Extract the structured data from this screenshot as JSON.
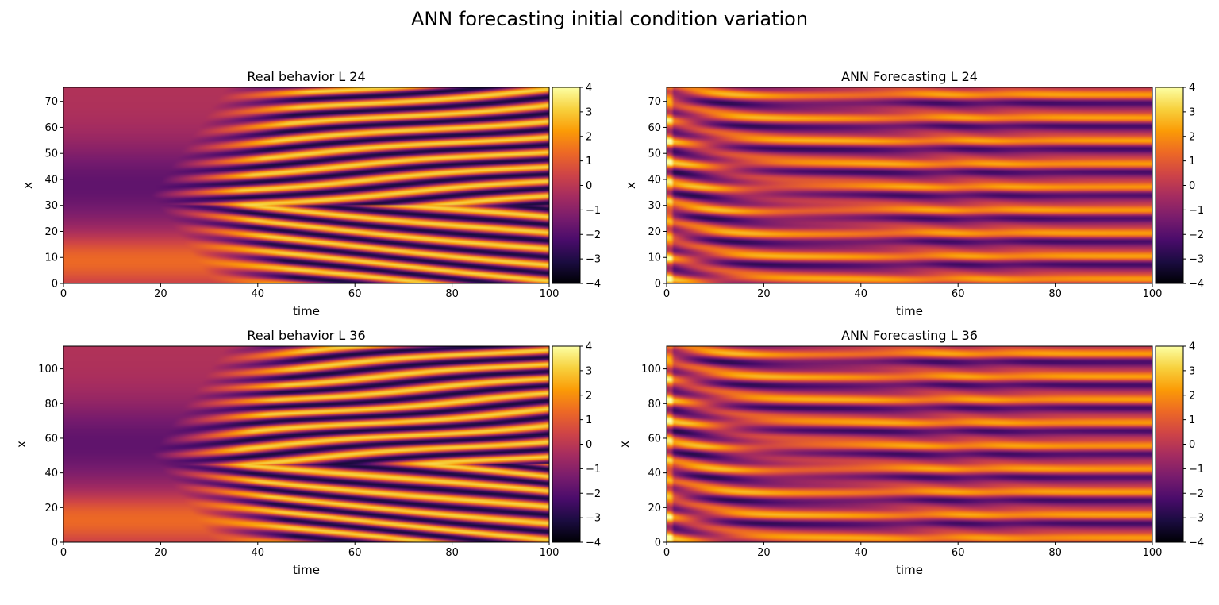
{
  "figure": {
    "suptitle": "ANN forecasting initial condition variation"
  },
  "colormap": {
    "name": "inferno",
    "stops": [
      "#000004",
      "#1b0c41",
      "#4a0c6b",
      "#781c6d",
      "#a52c60",
      "#cf4446",
      "#ed6925",
      "#fb9b06",
      "#f7d13d",
      "#fcffa4"
    ]
  },
  "chart_data": [
    {
      "type": "heatmap",
      "title": "Real behavior L 24",
      "xlabel": "time",
      "ylabel": "x",
      "xlim": [
        0,
        100
      ],
      "ylim": [
        0,
        75.4
      ],
      "xticks": [
        0,
        20,
        40,
        60,
        80,
        100
      ],
      "yticks": [
        0,
        10,
        20,
        30,
        40,
        50,
        60,
        70
      ],
      "colorbar": {
        "vmin": -4,
        "vmax": 4,
        "ticks": [
          4,
          3,
          2,
          1,
          0,
          -1,
          -2,
          -3,
          -4
        ],
        "tick_labels": [
          "4",
          "3",
          "2",
          "1",
          "0",
          "−1",
          "−2",
          "−3",
          "−4"
        ]
      },
      "grid": false
    },
    {
      "type": "heatmap",
      "title": "ANN Forecasting L 24",
      "xlabel": "time",
      "ylabel": "x",
      "xlim": [
        0,
        100
      ],
      "ylim": [
        0,
        75.4
      ],
      "xticks": [
        0,
        20,
        40,
        60,
        80,
        100
      ],
      "yticks": [
        0,
        10,
        20,
        30,
        40,
        50,
        60,
        70
      ],
      "colorbar": {
        "vmin": -4,
        "vmax": 4,
        "ticks": [
          4,
          3,
          2,
          1,
          0,
          -1,
          -2,
          -3,
          -4
        ],
        "tick_labels": [
          "4",
          "3",
          "2",
          "1",
          "0",
          "−1",
          "−2",
          "−3",
          "−4"
        ]
      },
      "grid": false
    },
    {
      "type": "heatmap",
      "title": "Real behavior L 36",
      "xlabel": "time",
      "ylabel": "x",
      "xlim": [
        0,
        100
      ],
      "ylim": [
        0,
        113.1
      ],
      "xticks": [
        0,
        20,
        40,
        60,
        80,
        100
      ],
      "yticks": [
        0,
        20,
        40,
        60,
        80,
        100
      ],
      "colorbar": {
        "vmin": -4,
        "vmax": 4,
        "ticks": [
          4,
          3,
          2,
          1,
          0,
          -1,
          -2,
          -3,
          -4
        ],
        "tick_labels": [
          "4",
          "3",
          "2",
          "1",
          "0",
          "−1",
          "−2",
          "−3",
          "−4"
        ]
      },
      "grid": false
    },
    {
      "type": "heatmap",
      "title": "ANN Forecasting L 36",
      "xlabel": "time",
      "ylabel": "x",
      "xlim": [
        0,
        100
      ],
      "ylim": [
        0,
        113.1
      ],
      "xticks": [
        0,
        20,
        40,
        60,
        80,
        100
      ],
      "yticks": [
        0,
        20,
        40,
        60,
        80,
        100
      ],
      "colorbar": {
        "vmin": -4,
        "vmax": 4,
        "ticks": [
          4,
          3,
          2,
          1,
          0,
          -1,
          -2,
          -3,
          -4
        ],
        "tick_labels": [
          "4",
          "3",
          "2",
          "1",
          "0",
          "−1",
          "−2",
          "−3",
          "−4"
        ]
      },
      "grid": false
    }
  ]
}
